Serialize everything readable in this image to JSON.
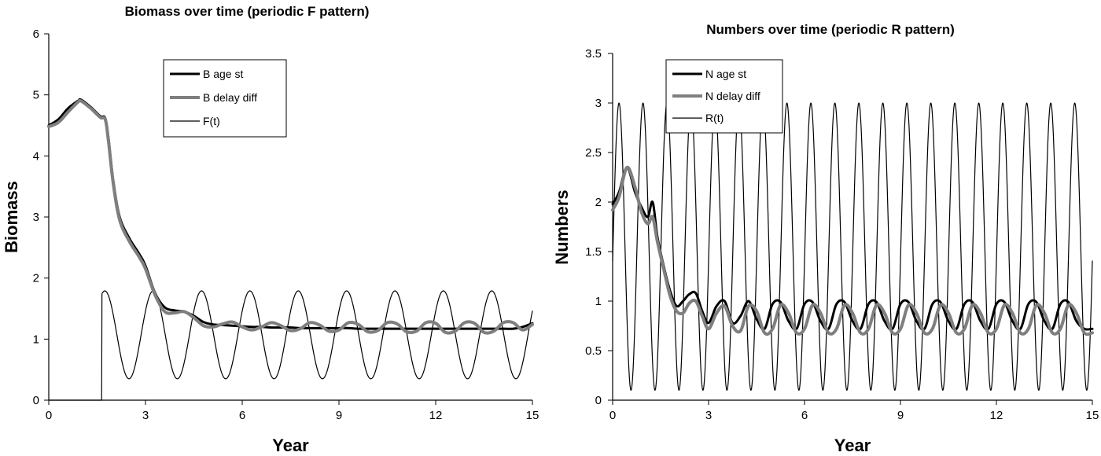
{
  "chart_data": [
    {
      "type": "line",
      "title": "Biomass over time (periodic  F pattern)",
      "xlabel": "Year",
      "ylabel": "Biomass",
      "xlim": [
        0,
        15
      ],
      "ylim": [
        0,
        6
      ],
      "xticks": [
        0,
        3,
        6,
        9,
        12,
        15
      ],
      "yticks": [
        0,
        1,
        2,
        3,
        4,
        5,
        6
      ],
      "legend": "top-center",
      "grid": false,
      "series": [
        {
          "name": "B age st",
          "color": "#000000",
          "x": [
            0,
            0.3,
            0.6,
            0.9,
            1.0,
            1.3,
            1.6,
            1.75,
            1.85,
            2.0,
            2.2,
            2.5,
            2.8,
            3.0,
            3.3,
            3.6,
            3.9,
            4.2,
            4.5,
            4.8,
            5.1,
            5.4,
            5.7,
            6.0,
            6.3,
            6.6,
            6.9,
            7.2,
            7.5,
            7.8,
            8.1,
            8.4,
            8.7,
            9.0,
            9.3,
            9.6,
            9.9,
            10.2,
            10.5,
            10.8,
            11.1,
            11.4,
            11.7,
            12.0,
            12.3,
            12.6,
            12.9,
            13.2,
            13.5,
            13.8,
            14.1,
            14.4,
            14.7,
            15.0
          ],
          "values": [
            4.5,
            4.6,
            4.78,
            4.9,
            4.92,
            4.8,
            4.65,
            4.62,
            4.3,
            3.6,
            3.0,
            2.65,
            2.4,
            2.2,
            1.75,
            1.52,
            1.47,
            1.45,
            1.38,
            1.28,
            1.24,
            1.23,
            1.22,
            1.21,
            1.2,
            1.2,
            1.19,
            1.19,
            1.19,
            1.18,
            1.18,
            1.18,
            1.18,
            1.18,
            1.18,
            1.17,
            1.17,
            1.17,
            1.17,
            1.17,
            1.17,
            1.17,
            1.17,
            1.17,
            1.17,
            1.17,
            1.17,
            1.17,
            1.17,
            1.17,
            1.17,
            1.17,
            1.2,
            1.26
          ]
        },
        {
          "name": "B delay diff",
          "color": "#7f7f7f",
          "x": [
            0,
            0.3,
            0.6,
            0.9,
            1.0,
            1.3,
            1.6,
            1.75,
            1.85,
            2.0,
            2.2,
            2.5,
            2.8,
            3.0,
            3.3,
            3.6,
            3.9,
            4.2,
            4.5,
            4.8,
            5.1,
            5.4,
            5.7,
            6.0,
            6.3,
            6.6,
            6.9,
            7.2,
            7.5,
            7.8,
            8.1,
            8.4,
            8.7,
            9.0,
            9.3,
            9.6,
            9.9,
            10.2,
            10.5,
            10.8,
            11.1,
            11.4,
            11.7,
            12.0,
            12.3,
            12.6,
            12.9,
            13.2,
            13.5,
            13.8,
            14.1,
            14.4,
            14.7,
            15.0
          ],
          "values": [
            4.48,
            4.55,
            4.72,
            4.88,
            4.9,
            4.78,
            4.63,
            4.6,
            4.25,
            3.55,
            2.95,
            2.6,
            2.35,
            2.15,
            1.72,
            1.45,
            1.43,
            1.45,
            1.35,
            1.22,
            1.2,
            1.25,
            1.28,
            1.2,
            1.15,
            1.2,
            1.27,
            1.22,
            1.14,
            1.17,
            1.27,
            1.23,
            1.13,
            1.15,
            1.27,
            1.24,
            1.12,
            1.14,
            1.27,
            1.25,
            1.12,
            1.13,
            1.27,
            1.26,
            1.11,
            1.13,
            1.27,
            1.26,
            1.11,
            1.13,
            1.27,
            1.27,
            1.15,
            1.24
          ]
        },
        {
          "name": "F(t)",
          "color": "#000000",
          "function": "F(t) = 0 for t < 1.65; F(t) = 1.07 + 0.72*sin(2*pi*(t-1.65)/1.5 + 1.2) for t >= 1.65",
          "x": [
            0,
            1.65,
            1.65,
            1.85,
            2.6,
            3.35,
            4.1,
            4.85,
            5.6,
            6.35,
            7.1,
            7.85,
            8.6,
            9.35,
            10.1,
            10.85,
            11.6,
            12.35,
            13.1,
            13.85,
            14.6,
            15.0
          ],
          "values": [
            0,
            0,
            1.74,
            1.79,
            0.35,
            1.79,
            0.35,
            1.79,
            0.35,
            1.79,
            0.35,
            1.79,
            0.35,
            1.79,
            0.35,
            1.79,
            0.35,
            1.79,
            0.35,
            1.79,
            0.35,
            1.2
          ]
        }
      ]
    },
    {
      "type": "line",
      "title": "Numbers  over time (periodic R pattern)",
      "xlabel": "Year",
      "ylabel": "Numbers",
      "xlim": [
        0,
        15
      ],
      "ylim": [
        0,
        3.5
      ],
      "xticks": [
        0,
        3,
        6,
        9,
        12,
        15
      ],
      "yticks": [
        0,
        0.5,
        1,
        1.5,
        2,
        2.5,
        3,
        3.5
      ],
      "legend": "top-left",
      "grid": false,
      "series": [
        {
          "name": "N age st",
          "color": "#000000",
          "x": [
            0,
            0.2,
            0.45,
            0.7,
            0.9,
            1.1,
            1.25,
            1.4,
            1.6,
            1.8,
            2.0,
            2.2,
            2.4,
            2.6,
            2.8,
            3.0,
            3.25,
            3.5,
            3.75,
            4.0,
            4.25,
            4.5,
            4.75,
            5.0,
            5.25,
            5.5,
            5.75,
            6.0,
            6.25,
            6.5,
            6.75,
            7.0,
            7.25,
            7.5,
            7.75,
            8.0,
            8.25,
            8.5,
            8.75,
            9.0,
            9.25,
            9.5,
            9.75,
            10.0,
            10.25,
            10.5,
            10.75,
            11.0,
            11.25,
            11.5,
            11.75,
            12.0,
            12.25,
            12.5,
            12.75,
            13.0,
            13.25,
            13.5,
            13.75,
            14.0,
            14.25,
            14.5,
            14.75,
            15.0
          ],
          "values": [
            1.98,
            2.1,
            2.35,
            2.1,
            1.95,
            1.85,
            2.0,
            1.65,
            1.35,
            1.1,
            0.95,
            1.0,
            1.07,
            1.08,
            0.9,
            0.78,
            0.95,
            1.0,
            0.78,
            0.85,
            1.0,
            0.82,
            0.72,
            0.97,
            0.99,
            0.8,
            0.72,
            0.97,
            0.99,
            0.8,
            0.72,
            0.97,
            0.99,
            0.8,
            0.72,
            0.97,
            0.99,
            0.8,
            0.72,
            0.97,
            0.99,
            0.8,
            0.72,
            0.97,
            0.99,
            0.8,
            0.72,
            0.97,
            0.99,
            0.8,
            0.72,
            0.97,
            0.99,
            0.8,
            0.72,
            0.97,
            0.99,
            0.8,
            0.72,
            0.97,
            0.99,
            0.8,
            0.72,
            0.72
          ]
        },
        {
          "name": "N delay diff",
          "color": "#7f7f7f",
          "x": [
            0,
            0.2,
            0.45,
            0.7,
            0.9,
            1.1,
            1.25,
            1.4,
            1.6,
            1.8,
            2.0,
            2.2,
            2.4,
            2.6,
            2.8,
            3.0,
            3.25,
            3.5,
            3.75,
            4.0,
            4.25,
            4.5,
            4.75,
            5.0,
            5.25,
            5.5,
            5.75,
            6.0,
            6.25,
            6.5,
            6.75,
            7.0,
            7.25,
            7.5,
            7.75,
            8.0,
            8.25,
            8.5,
            8.75,
            9.0,
            9.25,
            9.5,
            9.75,
            10.0,
            10.25,
            10.5,
            10.75,
            11.0,
            11.25,
            11.5,
            11.75,
            12.0,
            12.25,
            12.5,
            12.75,
            13.0,
            13.25,
            13.5,
            13.75,
            14.0,
            14.25,
            14.5,
            14.75,
            15.0
          ],
          "values": [
            1.92,
            2.05,
            2.35,
            2.15,
            1.9,
            1.78,
            1.85,
            1.6,
            1.32,
            1.05,
            0.9,
            0.88,
            0.98,
            1.0,
            0.85,
            0.72,
            0.88,
            0.95,
            0.75,
            0.7,
            0.95,
            0.9,
            0.68,
            0.72,
            0.96,
            0.88,
            0.68,
            0.72,
            0.96,
            0.88,
            0.68,
            0.72,
            0.96,
            0.88,
            0.68,
            0.72,
            0.96,
            0.88,
            0.68,
            0.72,
            0.96,
            0.88,
            0.68,
            0.72,
            0.96,
            0.88,
            0.68,
            0.72,
            0.96,
            0.88,
            0.68,
            0.72,
            0.96,
            0.88,
            0.68,
            0.72,
            0.96,
            0.88,
            0.68,
            0.72,
            0.96,
            0.88,
            0.68,
            0.68
          ]
        },
        {
          "name": "R(t)",
          "color": "#000000",
          "function": "R(t) = 1.55 + 1.45*sin(2*pi*t/0.75 - 0.1)",
          "x": [
            0,
            0.2,
            0.575,
            0.95,
            1.325,
            1.7,
            2.075,
            2.45,
            2.825,
            3.2,
            3.575,
            3.95,
            4.325,
            4.7,
            5.075,
            5.45,
            5.825,
            6.2,
            6.575,
            6.95,
            7.325,
            7.7,
            8.075,
            8.45,
            8.825,
            9.2,
            9.575,
            9.95,
            10.325,
            10.7,
            11.075,
            11.45,
            11.825,
            12.2,
            12.575,
            12.95,
            13.325,
            13.7,
            14.075,
            14.45,
            14.825,
            15.0
          ],
          "values": [
            1.4,
            3.0,
            0.1,
            3.0,
            0.1,
            3.0,
            0.1,
            3.0,
            0.1,
            3.0,
            0.1,
            3.0,
            0.1,
            3.0,
            0.1,
            3.0,
            0.1,
            3.0,
            0.1,
            3.0,
            0.1,
            3.0,
            0.1,
            3.0,
            0.1,
            3.0,
            0.1,
            3.0,
            0.1,
            3.0,
            0.1,
            3.0,
            0.1,
            3.0,
            0.1,
            3.0,
            0.1,
            3.0,
            0.1,
            3.0,
            0.1,
            1.55
          ]
        }
      ]
    }
  ]
}
